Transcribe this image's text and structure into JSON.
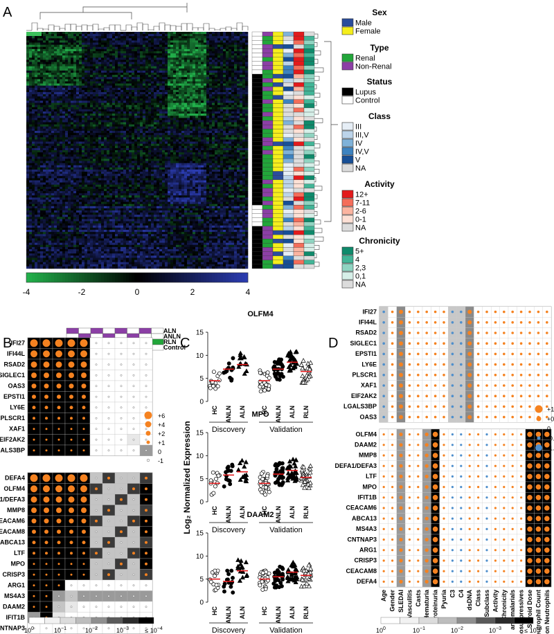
{
  "panels": {
    "a": "A",
    "b": "B",
    "c": "C",
    "d": "D"
  },
  "colors": {
    "male": "#2a4d9c",
    "female": "#f5ee1c",
    "renal": "#22a63a",
    "nonrenal": "#8c3fa6",
    "lupus": "#000000",
    "control": "#ffffff",
    "class": [
      "#e6eef6",
      "#bcd4ea",
      "#7fb2d9",
      "#3d83c0",
      "#174f96",
      "#dcdcdc"
    ],
    "activity": [
      "#e31a1c",
      "#f46d5a",
      "#fbb4a0",
      "#fde0d5",
      "#dcdcdc"
    ],
    "chronicity": [
      "#0f8a6b",
      "#42b597",
      "#8fd4c1",
      "#d6efe8",
      "#dcdcdc"
    ],
    "orange": "#f58220",
    "blue": "#4f8fcc"
  },
  "chart_data": [
    {
      "panel": "A",
      "type": "heatmap",
      "colorbar": {
        "ticks": [
          "-4",
          "-2",
          "0",
          "2",
          "4"
        ],
        "range": [
          -4,
          4
        ],
        "colors": [
          "#22b04b",
          "#000000",
          "#2b3cb0"
        ]
      },
      "legend": [
        {
          "title": "Sex",
          "items": [
            "Male",
            "Female"
          ]
        },
        {
          "title": "Type",
          "items": [
            "Renal",
            "Non-Renal"
          ]
        },
        {
          "title": "Status",
          "items": [
            "Lupus",
            "Control"
          ]
        },
        {
          "title": "Class",
          "items": [
            "III",
            "III,V",
            "IV",
            "IV,V",
            "V",
            "NA"
          ]
        },
        {
          "title": "Activity",
          "items": [
            "12+",
            "7-11",
            "2-6",
            "0-1",
            "NA"
          ]
        },
        {
          "title": "Chronicity",
          "items": [
            "5+",
            "4",
            "2,3",
            "0,1",
            "NA"
          ]
        }
      ]
    },
    {
      "panel": "B",
      "type": "heatmap",
      "row_labels": [
        "ALN",
        "ANLN",
        "RLN",
        "Control"
      ],
      "genes_top": [
        "IFI27",
        "IFI44L",
        "RSAD2",
        "SIGLEC1",
        "OAS3",
        "EPSTI1",
        "LY6E",
        "PLSCR1",
        "XAF1",
        "EIF2AK2",
        "LGALS3BP"
      ],
      "genes_bottom": [
        "DEFA4",
        "OLFM4",
        "DEFA1/DEFA3",
        "MMP8",
        "CEACAM6",
        "CEACAM8",
        "ABCA13",
        "LTF",
        "MPO",
        "CRISP3",
        "ARG1",
        "MS4A3",
        "DAAM2",
        "IFIT1B",
        "CNTNAP3"
      ],
      "size_legend": [
        "+6",
        "+4",
        "+2",
        "+1",
        "0",
        "-1"
      ],
      "pvalue_ticks": [
        "10^0",
        "10^-1",
        "10^-2",
        "10^-3",
        "≤ 10^-4"
      ]
    },
    {
      "panel": "C",
      "type": "scatter",
      "ylabel": "Log₂ Normalized Expression",
      "groups": [
        "HC",
        "ANLN",
        "ALN",
        "HC",
        "ANLN",
        "ALN",
        "RLN"
      ],
      "cohorts": [
        "Discovery",
        "Validation"
      ],
      "ylim": [
        0,
        15
      ],
      "yticks": [
        "0",
        "5",
        "10",
        "15"
      ],
      "subplots": [
        {
          "title": "OLFM4",
          "medians": [
            4.5,
            7.0,
            8.0,
            4.5,
            7.0,
            8.5,
            6.5
          ]
        },
        {
          "title": "MPO",
          "medians": [
            4.0,
            5.8,
            6.5,
            4.0,
            6.0,
            6.8,
            5.3
          ]
        },
        {
          "title": "DAAM2",
          "medians": [
            5.0,
            4.5,
            6.8,
            5.0,
            5.5,
            6.5,
            5.8
          ]
        }
      ]
    },
    {
      "panel": "D",
      "type": "heatmap",
      "genes_top": [
        "IFI27",
        "IFI44L",
        "RSAD2",
        "SIGLEC1",
        "EPSTI1",
        "LY6E",
        "PLSCR1",
        "XAF1",
        "EIF2AK2",
        "LGALS3BP",
        "OAS3"
      ],
      "genes_bottom": [
        "OLFM4",
        "DAAM2",
        "MMP8",
        "DEFA1/DEFA3",
        "LTF",
        "MPO",
        "IFIT1B",
        "CEACAM6",
        "ABCA13",
        "MS4A3",
        "CNTNAP3",
        "ARG1",
        "CRISP3",
        "CEACAM8",
        "DEFA4"
      ],
      "columns": [
        "Age",
        "Gender",
        "SLEDAI",
        "Vasculitis",
        "Casts",
        "Hematuria",
        "Proteinuria",
        "Pyuria",
        "C3",
        "C4",
        "dsDNA",
        "Class",
        "Subclass",
        "Activity",
        "Chronicity",
        "anti-malarials",
        "Immunosuppressives",
        "Steroid Dose",
        "Neutrophil Count",
        "Proportion Neutrophils"
      ],
      "corr_legend": [
        "+1.0",
        "+0.5",
        "0",
        "-0.5",
        "-1.0"
      ],
      "pvalue_ticks": [
        "10^0",
        "10^-1",
        "10^-2",
        "10^-3",
        "≤ 10^-4"
      ]
    }
  ]
}
